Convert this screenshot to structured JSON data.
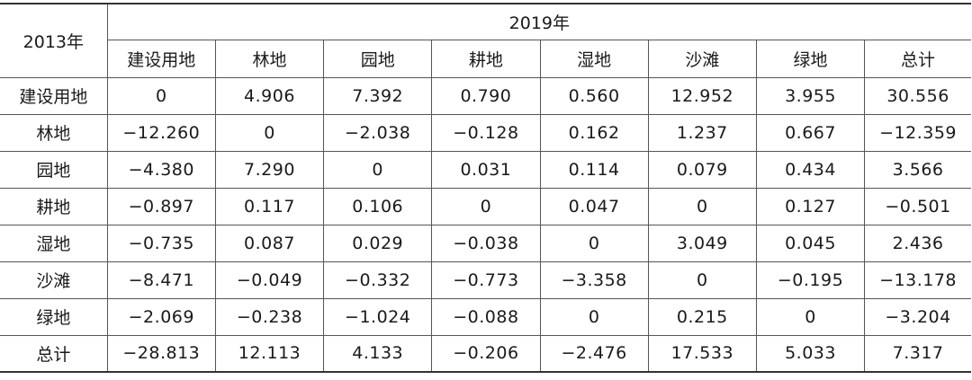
{
  "table": {
    "corner_label": "2013年",
    "column_group_label": "2019年",
    "columns": [
      "建设用地",
      "林地",
      "园地",
      "耕地",
      "湿地",
      "沙滩",
      "绿地",
      "总计"
    ],
    "rows": [
      {
        "label": "建设用地",
        "values": [
          "0",
          "4.906",
          "7.392",
          "0.790",
          "0.560",
          "12.952",
          "3.955",
          "30.556"
        ]
      },
      {
        "label": "林地",
        "values": [
          "−12.260",
          "0",
          "−2.038",
          "−0.128",
          "0.162",
          "1.237",
          "0.667",
          "−12.359"
        ]
      },
      {
        "label": "园地",
        "values": [
          "−4.380",
          "7.290",
          "0",
          "0.031",
          "0.114",
          "0.079",
          "0.434",
          "3.566"
        ]
      },
      {
        "label": "耕地",
        "values": [
          "−0.897",
          "0.117",
          "0.106",
          "0",
          "0.047",
          "0",
          "0.127",
          "−0.501"
        ]
      },
      {
        "label": "湿地",
        "values": [
          "−0.735",
          "0.087",
          "0.029",
          "−0.038",
          "0",
          "3.049",
          "0.045",
          "2.436"
        ]
      },
      {
        "label": "沙滩",
        "values": [
          "−8.471",
          "−0.049",
          "−0.332",
          "−0.773",
          "−3.358",
          "0",
          "−0.195",
          "−13.178"
        ]
      },
      {
        "label": "绿地",
        "values": [
          "−2.069",
          "−0.238",
          "−1.024",
          "−0.088",
          "0",
          "0.215",
          "0",
          "−3.204"
        ]
      },
      {
        "label": "总计",
        "values": [
          "−28.813",
          "12.113",
          "4.133",
          "−0.206",
          "−2.476",
          "17.533",
          "5.033",
          "7.317"
        ]
      }
    ]
  }
}
